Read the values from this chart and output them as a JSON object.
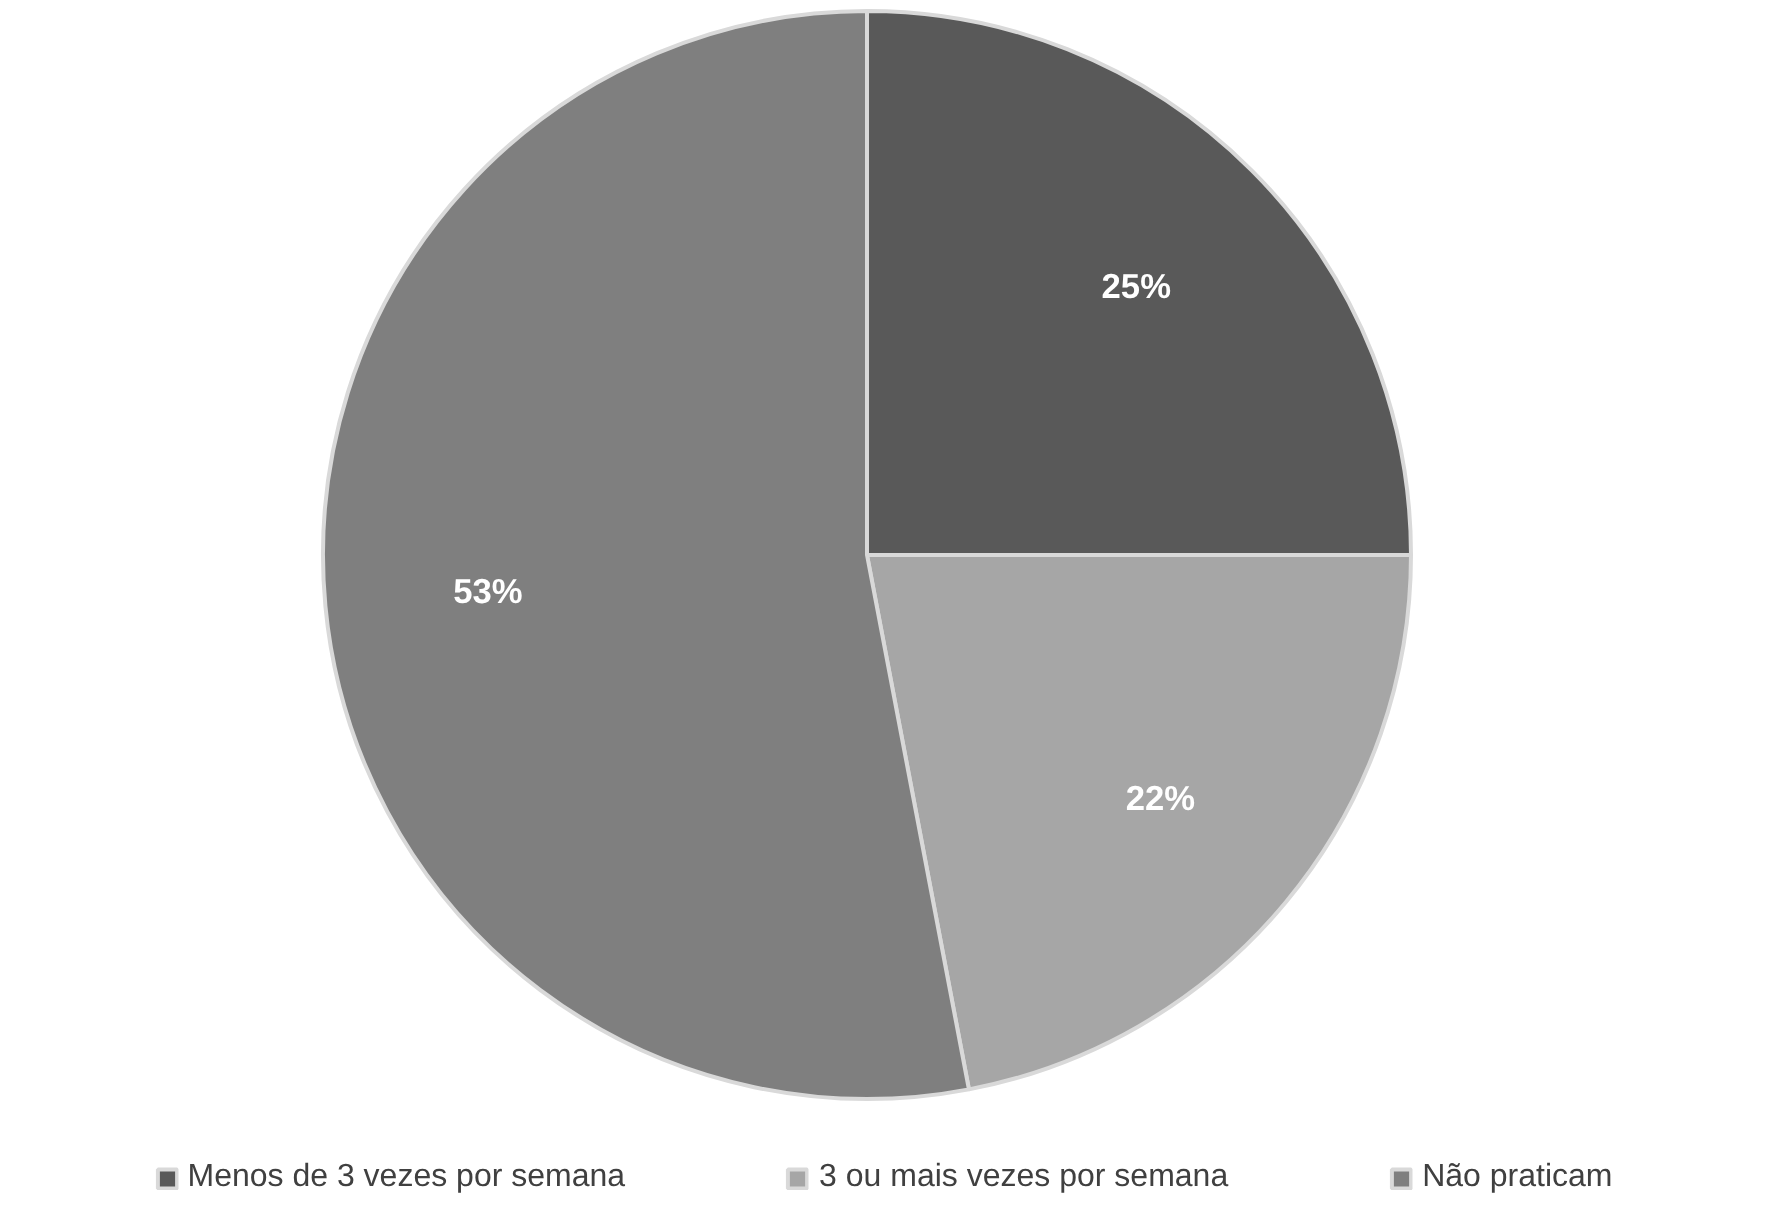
{
  "chart_data": {
    "type": "pie",
    "categories": [
      "Menos de 3 vezes por semana",
      "3 ou mais vezes por semana",
      "Não praticam"
    ],
    "values": [
      25,
      22,
      53
    ],
    "colors": [
      "#595959",
      "#a6a6a6",
      "#7f7f7f"
    ],
    "value_labels": [
      "25%",
      "22%",
      "53%"
    ],
    "legend": "bottom"
  }
}
